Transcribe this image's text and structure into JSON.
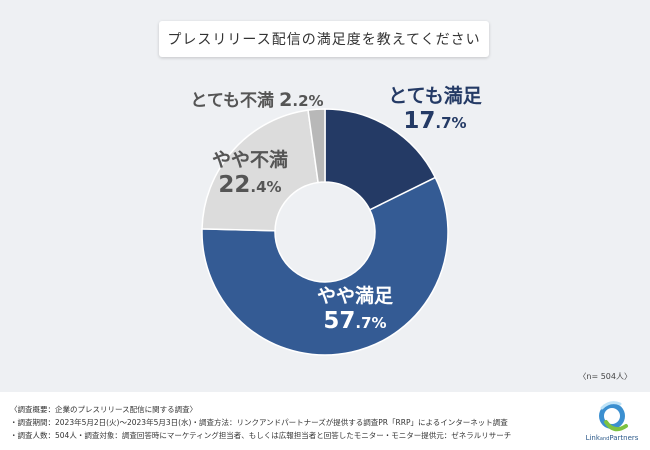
{
  "title": "プレスリリース配信の満足度を教えてください",
  "chart_data": {
    "type": "pie",
    "categories": [
      "とても満足",
      "やや満足",
      "やや不満",
      "とても不満"
    ],
    "values": [
      17.7,
      57.7,
      22.4,
      2.2
    ],
    "colors": [
      "#243a65",
      "#345b94",
      "#dcdcdc",
      "#b8b8b8"
    ],
    "value_labels": [
      {
        "int": "17",
        "dec": ".7%"
      },
      {
        "int": "57",
        "dec": ".7%"
      },
      {
        "int": "22",
        "dec": ".4%"
      },
      {
        "int": "2",
        "dec": ".2%"
      }
    ],
    "title": "プレスリリース配信の満足度を教えてください"
  },
  "sample_size": "〈n= 504人〉",
  "notes": [
    "〈調査概要：企業のプレスリリース配信に関する調査〉",
    "・調査期間：2023年5月2日(火)〜2023年5月3日(水)・調査方法：リンクアンドパートナーズが提供する調査PR「RRP」によるインターネット調査",
    "・調査人数：504人・調査対象：調査回答時にマーケティング担当者、もしくは広報担当者と回答したモニター・モニター提供元：ゼネラルリサーチ"
  ],
  "logo": {
    "text_main1": "Link",
    "text_small": "and",
    "text_main2": "Partners"
  }
}
